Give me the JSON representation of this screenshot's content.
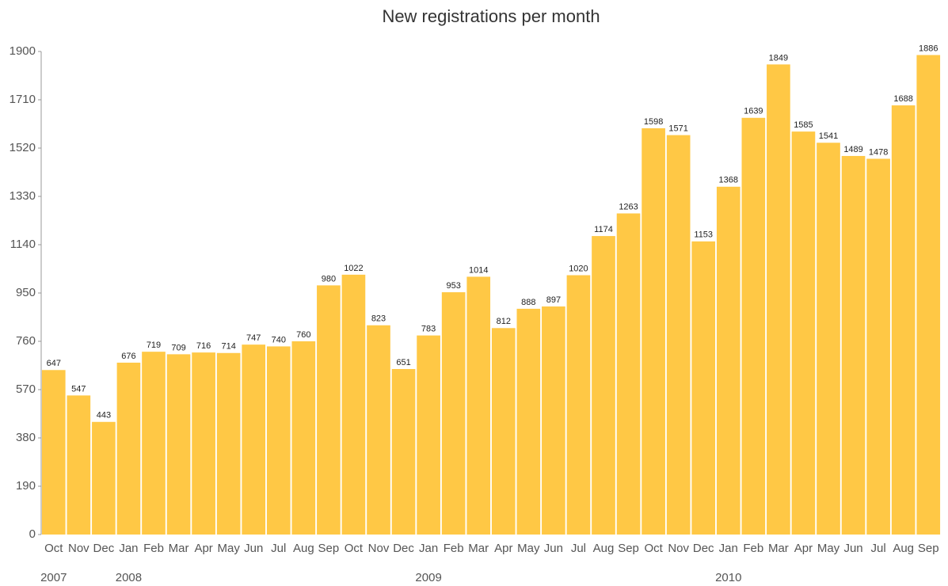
{
  "chart_data": {
    "type": "bar",
    "title": "New registrations per month",
    "categories": [
      "Oct",
      "Nov",
      "Dec",
      "Jan",
      "Feb",
      "Mar",
      "Apr",
      "May",
      "Jun",
      "Jul",
      "Aug",
      "Sep",
      "Oct",
      "Nov",
      "Dec",
      "Jan",
      "Feb",
      "Mar",
      "Apr",
      "May",
      "Jun",
      "Jul",
      "Aug",
      "Sep",
      "Oct",
      "Nov",
      "Dec",
      "Jan",
      "Feb",
      "Mar",
      "Apr",
      "May",
      "Jun",
      "Jul",
      "Aug",
      "Sep"
    ],
    "years": [
      "2007",
      null,
      null,
      "2008",
      null,
      null,
      null,
      null,
      null,
      null,
      null,
      null,
      null,
      null,
      null,
      "2009",
      null,
      null,
      null,
      null,
      null,
      null,
      null,
      null,
      null,
      null,
      null,
      "2010",
      null,
      null,
      null,
      null,
      null,
      null,
      null,
      null
    ],
    "values": [
      647,
      547,
      443,
      676,
      719,
      709,
      716,
      714,
      747,
      740,
      760,
      980,
      1022,
      823,
      651,
      783,
      953,
      1014,
      812,
      888,
      897,
      1020,
      1174,
      1263,
      1598,
      1571,
      1153,
      1368,
      1639,
      1849,
      1585,
      1541,
      1489,
      1478,
      1688,
      1886
    ],
    "color": "#ffc845",
    "ylim": [
      0,
      1900
    ],
    "yticks": [
      0,
      190,
      380,
      570,
      760,
      950,
      1140,
      1330,
      1520,
      1710,
      1900
    ],
    "grid": false
  }
}
